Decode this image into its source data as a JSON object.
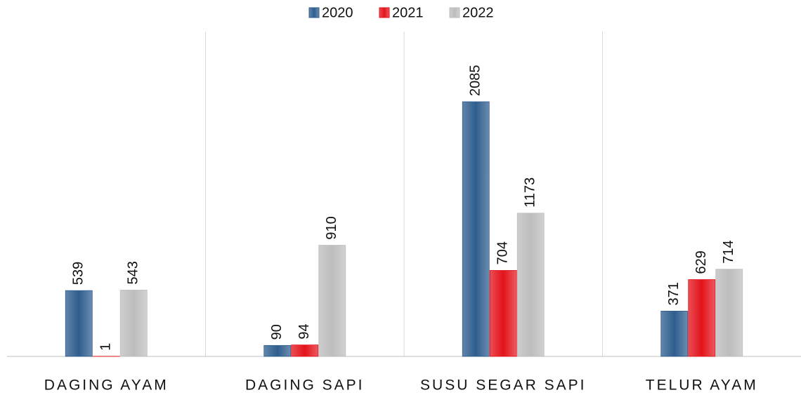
{
  "chart_data": {
    "type": "bar",
    "categories": [
      "DAGING AYAM",
      "DAGING SAPI",
      "SUSU SEGAR SAPI",
      "TELUR AYAM"
    ],
    "series": [
      {
        "name": "2020",
        "color": "#2e5d8e",
        "values": [
          539,
          90,
          2085,
          371
        ]
      },
      {
        "name": "2021",
        "color": "#e3131b",
        "values": [
          1,
          94,
          704,
          629
        ]
      },
      {
        "name": "2022",
        "color": "#bdbdbd",
        "values": [
          543,
          910,
          1173,
          714
        ]
      }
    ],
    "legend": "top"
  }
}
